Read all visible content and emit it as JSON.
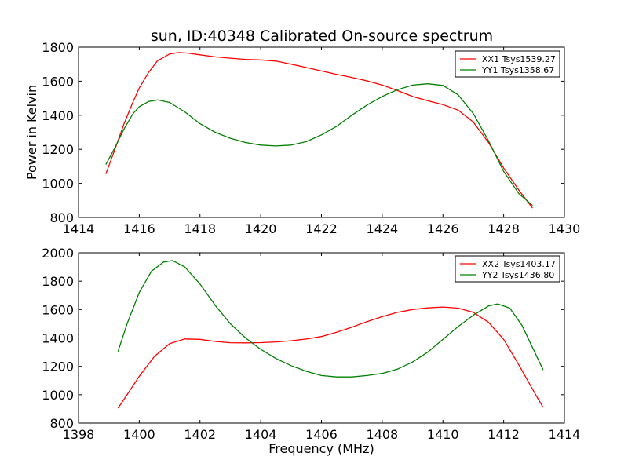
{
  "title": "sun, ID:40348 Calibrated On-source spectrum",
  "colors": {
    "xx": "#ff0000",
    "yy": "#008000",
    "axes": "#000000",
    "background": "#ffffff"
  },
  "chart_data": [
    {
      "type": "line",
      "title": "sun, ID:40348 Calibrated On-source spectrum",
      "xlabel": "",
      "ylabel": "Power in Kelvin",
      "xlim": [
        1414,
        1430
      ],
      "ylim": [
        800,
        1800
      ],
      "xticks": [
        1414,
        1416,
        1418,
        1420,
        1422,
        1424,
        1426,
        1428,
        1430
      ],
      "yticks": [
        800,
        1000,
        1200,
        1400,
        1600,
        1800
      ],
      "grid": false,
      "legend_position": "top-right",
      "series": [
        {
          "name": "XX1 Tsys1539.27",
          "color": "#ff0000",
          "x": [
            1414.9,
            1415.2,
            1415.5,
            1415.8,
            1416.0,
            1416.3,
            1416.6,
            1417.0,
            1417.3,
            1417.6,
            1418.0,
            1418.5,
            1419.0,
            1419.5,
            1420.0,
            1420.5,
            1421.0,
            1421.5,
            1422.0,
            1422.5,
            1423.0,
            1423.5,
            1424.0,
            1424.5,
            1425.0,
            1425.5,
            1426.0,
            1426.5,
            1427.0,
            1427.5,
            1428.0,
            1428.5,
            1428.95
          ],
          "y": [
            1055,
            1200,
            1350,
            1480,
            1560,
            1650,
            1720,
            1760,
            1768,
            1765,
            1755,
            1743,
            1735,
            1728,
            1725,
            1718,
            1700,
            1680,
            1660,
            1640,
            1622,
            1602,
            1577,
            1545,
            1510,
            1485,
            1462,
            1430,
            1360,
            1240,
            1090,
            960,
            855
          ]
        },
        {
          "name": "YY1 Tsys1358.67",
          "color": "#008000",
          "x": [
            1414.9,
            1415.2,
            1415.5,
            1415.8,
            1416.0,
            1416.3,
            1416.6,
            1417.0,
            1417.5,
            1418.0,
            1418.5,
            1419.0,
            1419.5,
            1420.0,
            1420.5,
            1421.0,
            1421.5,
            1422.0,
            1422.5,
            1423.0,
            1423.5,
            1424.0,
            1424.5,
            1425.0,
            1425.5,
            1426.0,
            1426.5,
            1427.0,
            1427.5,
            1428.0,
            1428.5,
            1428.95
          ],
          "y": [
            1110,
            1210,
            1320,
            1410,
            1450,
            1480,
            1490,
            1475,
            1420,
            1350,
            1300,
            1265,
            1240,
            1225,
            1220,
            1225,
            1245,
            1285,
            1335,
            1400,
            1460,
            1510,
            1550,
            1577,
            1585,
            1575,
            1520,
            1410,
            1250,
            1070,
            940,
            870
          ]
        }
      ]
    },
    {
      "type": "line",
      "title": "",
      "xlabel": "Frequency (MHz)",
      "ylabel": "",
      "xlim": [
        1398,
        1414
      ],
      "ylim": [
        800,
        2000
      ],
      "xticks": [
        1398,
        1400,
        1402,
        1404,
        1406,
        1408,
        1410,
        1412,
        1414
      ],
      "yticks": [
        800,
        1000,
        1200,
        1400,
        1600,
        1800,
        2000
      ],
      "grid": false,
      "legend_position": "top-right",
      "series": [
        {
          "name": "XX2 Tsys1403.17",
          "color": "#ff0000",
          "x": [
            1399.3,
            1399.6,
            1400.0,
            1400.5,
            1401.0,
            1401.5,
            1402.0,
            1402.5,
            1403.0,
            1403.5,
            1404.0,
            1404.5,
            1405.0,
            1405.5,
            1406.0,
            1406.5,
            1407.0,
            1407.5,
            1408.0,
            1408.5,
            1409.0,
            1409.5,
            1410.0,
            1410.5,
            1411.0,
            1411.5,
            1412.0,
            1412.5,
            1413.0,
            1413.3
          ],
          "y": [
            905,
            1000,
            1130,
            1270,
            1360,
            1393,
            1390,
            1375,
            1366,
            1365,
            1367,
            1372,
            1380,
            1392,
            1410,
            1440,
            1475,
            1515,
            1550,
            1580,
            1600,
            1612,
            1618,
            1610,
            1580,
            1510,
            1390,
            1210,
            1020,
            910
          ]
        },
        {
          "name": "YY2 Tsys1436.80",
          "color": "#008000",
          "x": [
            1399.3,
            1399.6,
            1400.0,
            1400.4,
            1400.8,
            1401.1,
            1401.5,
            1402.0,
            1402.5,
            1403.0,
            1403.5,
            1404.0,
            1404.5,
            1405.0,
            1405.5,
            1406.0,
            1406.5,
            1407.0,
            1407.5,
            1408.0,
            1408.5,
            1409.0,
            1409.5,
            1410.0,
            1410.5,
            1411.0,
            1411.5,
            1411.8,
            1412.2,
            1412.6,
            1413.0,
            1413.3
          ],
          "y": [
            1305,
            1500,
            1720,
            1870,
            1935,
            1945,
            1900,
            1780,
            1630,
            1500,
            1400,
            1320,
            1255,
            1205,
            1165,
            1135,
            1125,
            1125,
            1135,
            1150,
            1180,
            1230,
            1300,
            1390,
            1480,
            1560,
            1625,
            1640,
            1610,
            1490,
            1310,
            1175
          ]
        }
      ]
    }
  ]
}
